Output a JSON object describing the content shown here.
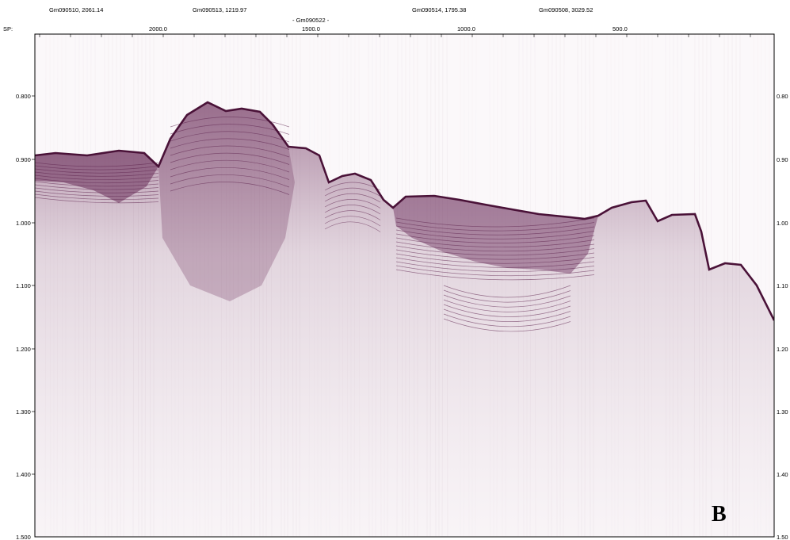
{
  "header": {
    "sp_label": "SP:",
    "lines": [
      {
        "label": "Gm090510, 2061.14"
      },
      {
        "label": "Gm090513, 1219.97"
      },
      {
        "label": "- Gm090522 -"
      },
      {
        "label": "Gm090514, 1795.38"
      },
      {
        "label": "Gm090508, 3029.52"
      }
    ],
    "sp_ticks": [
      "2000.0",
      "1500.0",
      "1000.0",
      "500.0"
    ]
  },
  "axes": {
    "left_ticks": [
      "0.800",
      "0.900",
      "1.000",
      "1.100",
      "1.200",
      "1.300",
      "1.400",
      "1.500"
    ],
    "right_ticks": [
      "0.80",
      "0.90",
      "1.00",
      "1.10",
      "1.20",
      "1.30",
      "1.40",
      "1.50"
    ]
  },
  "panel_letter": "B",
  "colors": {
    "reflector": "#5a1e48",
    "background": "#fbf8fa",
    "frame": "#000000"
  }
}
